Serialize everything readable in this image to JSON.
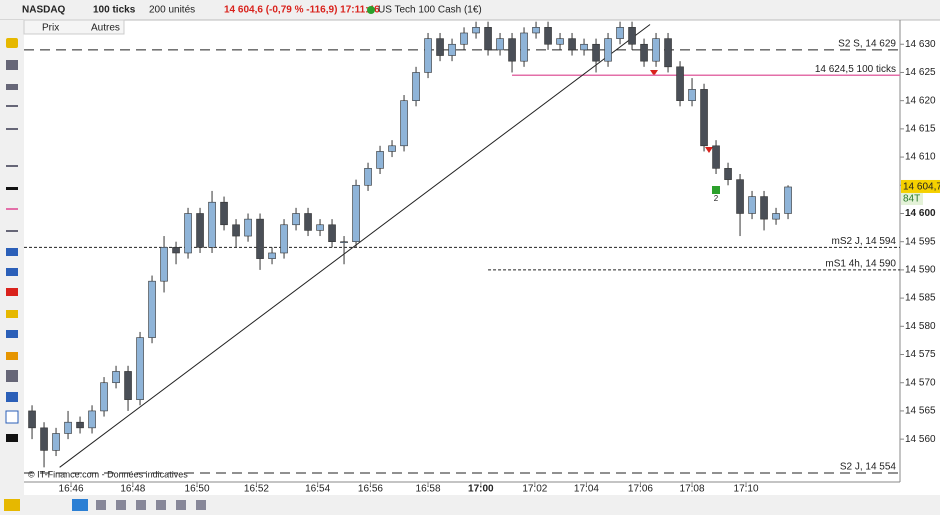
{
  "toolbar": {
    "symbol": "NASDAQ",
    "period": "100 ticks",
    "units": "200 unités",
    "quote": "14 604,6 (-0,79 % -116,9) 17:11:46",
    "instrument": "US Tech 100 Cash (1€)",
    "tabs": [
      "Prix",
      "Autres"
    ]
  },
  "chart_data": {
    "type": "candlestick",
    "copyright": "© IT-Finance.com - Données indicatives",
    "up_color": "#8fb4d8",
    "down_color": "#4a4f57",
    "x": [
      0,
      1,
      2,
      3,
      4,
      5,
      6,
      7,
      8,
      9,
      10,
      11,
      12,
      13,
      14,
      15,
      16,
      17,
      18,
      19,
      20,
      21,
      22,
      23,
      24,
      25,
      26,
      27,
      28,
      29,
      30,
      31,
      32,
      33,
      34,
      35,
      36,
      37,
      38,
      39,
      40,
      41,
      42,
      43,
      44,
      45,
      46,
      47,
      48,
      49,
      50,
      51,
      52,
      53,
      54,
      55,
      56,
      57,
      58,
      59,
      60,
      61,
      62,
      63
    ],
    "open": [
      14565,
      14562,
      14558,
      14561,
      14563,
      14562,
      14565,
      14570,
      14572,
      14567,
      14578,
      14588,
      14594,
      14593,
      14600,
      14594,
      14602,
      14598,
      14596,
      14599,
      14592,
      14593,
      14598,
      14600,
      14597,
      14598,
      14595,
      14595,
      14605,
      14608,
      14611,
      14612,
      14620,
      14625,
      14631,
      14628,
      14630,
      14632,
      14633,
      14629,
      14631,
      14627,
      14632,
      14633,
      14630,
      14631,
      14629,
      14630,
      14627,
      14631,
      14633,
      14630,
      14627,
      14631,
      14626,
      14620,
      14622,
      14612,
      14608,
      14606,
      14600,
      14603,
      14599,
      14600
    ],
    "high": [
      14566,
      14563,
      14562,
      14565,
      14564,
      14566,
      14571,
      14573,
      14573,
      14579,
      14589,
      14596,
      14595,
      14601,
      14601,
      14604,
      14603,
      14599,
      14600,
      14600,
      14594,
      14599,
      14601,
      14601,
      14599,
      14599,
      14596,
      14606,
      14609,
      14612,
      14613,
      14621,
      14626,
      14632,
      14632,
      14631,
      14633,
      14634,
      14634,
      14632,
      14632,
      14633,
      14634,
      14634,
      14632,
      14632,
      14631,
      14631,
      14632,
      14634,
      14634,
      14631,
      14632,
      14632,
      14627,
      14624,
      14623,
      14613,
      14609,
      14607,
      14604,
      14604,
      14601,
      14605
    ],
    "low": [
      14560,
      14555,
      14557,
      14560,
      14561,
      14561,
      14564,
      14569,
      14565,
      14566,
      14577,
      14586,
      14591,
      14592,
      14593,
      14593,
      14597,
      14594,
      14595,
      14590,
      14591,
      14592,
      14597,
      14596,
      14596,
      14594,
      14591,
      14594,
      14604,
      14607,
      14610,
      14611,
      14619,
      14624,
      14627,
      14627,
      14629,
      14631,
      14628,
      14628,
      14625,
      14626,
      14631,
      14629,
      14629,
      14628,
      14628,
      14625,
      14626,
      14630,
      14629,
      14626,
      14626,
      14625,
      14619,
      14619,
      14611,
      14607,
      14605,
      14596,
      14599,
      14597,
      14598,
      14599
    ],
    "close": [
      14562,
      14558,
      14561,
      14563,
      14562,
      14565,
      14570,
      14572,
      14567,
      14578,
      14588,
      14594,
      14593,
      14600,
      14594,
      14602,
      14598,
      14596,
      14599,
      14592,
      14593,
      14598,
      14600,
      14597,
      14598,
      14595,
      14595,
      14605,
      14608,
      14611,
      14612,
      14620,
      14625,
      14631,
      14628,
      14630,
      14632,
      14633,
      14629,
      14631,
      14627,
      14632,
      14633,
      14630,
      14631,
      14629,
      14630,
      14627,
      14631,
      14633,
      14630,
      14627,
      14631,
      14626,
      14620,
      14622,
      14612,
      14608,
      14606,
      14600,
      14603,
      14599,
      14600,
      14604.7
    ],
    "xlim": [
      -0.67,
      72.33
    ],
    "xticks": [
      {
        "value": 3.25,
        "label": "16:46"
      },
      {
        "value": 8.4,
        "label": "16:48"
      },
      {
        "value": 13.75,
        "label": "16:50"
      },
      {
        "value": 18.7,
        "label": "16:52"
      },
      {
        "value": 23.8,
        "label": "16:54"
      },
      {
        "value": 28.2,
        "label": "16:56"
      },
      {
        "value": 33,
        "label": "16:58"
      },
      {
        "value": 37.4,
        "label": "17:00",
        "bold": true
      },
      {
        "value": 41.9,
        "label": "17:02"
      },
      {
        "value": 46.2,
        "label": "17:04"
      },
      {
        "value": 50.7,
        "label": "17:06"
      },
      {
        "value": 55,
        "label": "17:08"
      },
      {
        "value": 59.5,
        "label": "17:10"
      }
    ],
    "ylim": [
      14552.4,
      14634.3
    ],
    "yticks": [
      {
        "value": 14560,
        "label": "14 560"
      },
      {
        "value": 14565,
        "label": "14 565"
      },
      {
        "value": 14570,
        "label": "14 570"
      },
      {
        "value": 14575,
        "label": "14 575"
      },
      {
        "value": 14580,
        "label": "14 580"
      },
      {
        "value": 14585,
        "label": "14 585"
      },
      {
        "value": 14590,
        "label": "14 590"
      },
      {
        "value": 14595,
        "label": "14 595"
      },
      {
        "value": 14600,
        "label": "14 600",
        "bold": true
      },
      {
        "value": 14605,
        "label": "14 605"
      },
      {
        "value": 14610,
        "label": "14 610"
      },
      {
        "value": 14615,
        "label": "14 615"
      },
      {
        "value": 14620,
        "label": "14 620"
      },
      {
        "value": 14625,
        "label": "14 625"
      },
      {
        "value": 14630,
        "label": "14 630"
      }
    ],
    "levels": [
      {
        "value": 14629,
        "label": "S2 S, 14 629",
        "style": "dashed",
        "color": "#222",
        "from": -0.67
      },
      {
        "value": 14624.5,
        "label": "14 624,5 100 ticks",
        "style": "solid",
        "color": "#e36fa8",
        "from": 40
      },
      {
        "value": 14594,
        "label": "mS2 J, 14 594",
        "style": "dotted",
        "color": "#222",
        "from": -0.67
      },
      {
        "value": 14590,
        "label": "mS1 4h, 14 590",
        "style": "dotted",
        "color": "#222",
        "from": 38
      },
      {
        "value": 14554,
        "label": "S2 J, 14 554",
        "style": "dashed",
        "color": "#222",
        "from": -0.67
      }
    ],
    "trendline": {
      "x": [
        2.3,
        51.5
      ],
      "y": [
        14555,
        14633.5
      ]
    },
    "last": {
      "value": 14604.7,
      "label": "14 604,7",
      "ticks": "84T"
    },
    "signal_label": "2"
  }
}
